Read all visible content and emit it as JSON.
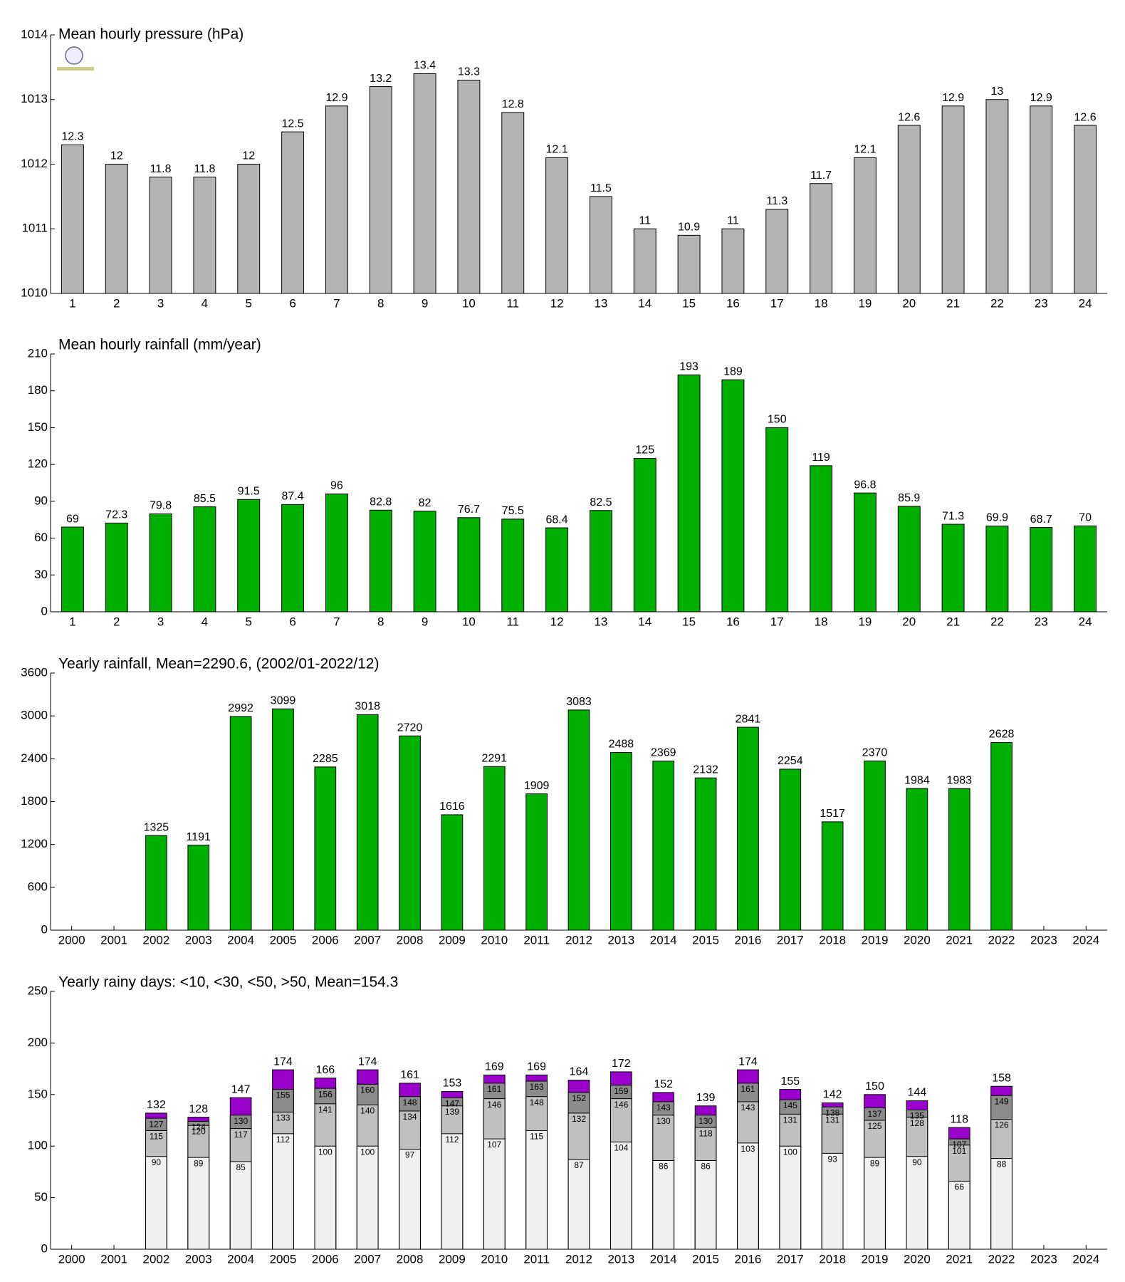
{
  "chart_data": [
    {
      "type": "bar",
      "title": "Mean hourly pressure (hPa)",
      "categories": [
        "1",
        "2",
        "3",
        "4",
        "5",
        "6",
        "7",
        "8",
        "9",
        "10",
        "11",
        "12",
        "13",
        "14",
        "15",
        "16",
        "17",
        "18",
        "19",
        "20",
        "21",
        "22",
        "23",
        "24"
      ],
      "values": [
        1012.3,
        1012,
        1011.8,
        1011.8,
        1012,
        1012.5,
        1012.9,
        1013.2,
        1013.4,
        1013.3,
        1012.8,
        1012.1,
        1011.5,
        1011,
        1010.9,
        1011,
        1011.3,
        1011.7,
        1012.1,
        1012.6,
        1012.9,
        1013,
        1012.9,
        1012.6
      ],
      "value_labels": [
        "12.3",
        "12",
        "11.8",
        "11.8",
        "12",
        "12.5",
        "12.9",
        "13.2",
        "13.4",
        "13.3",
        "12.8",
        "12.1",
        "11.5",
        "11",
        "10.9",
        "11",
        "11.3",
        "11.7",
        "12.1",
        "12.6",
        "12.9",
        "13",
        "12.9",
        "12.6"
      ],
      "color": "#b4b4b4",
      "ylim": [
        1010,
        1014
      ],
      "yticks": [
        1010,
        1011,
        1012,
        1013,
        1014
      ]
    },
    {
      "type": "bar",
      "title": "Mean hourly rainfall (mm/year)",
      "categories": [
        "1",
        "2",
        "3",
        "4",
        "5",
        "6",
        "7",
        "8",
        "9",
        "10",
        "11",
        "12",
        "13",
        "14",
        "15",
        "16",
        "17",
        "18",
        "19",
        "20",
        "21",
        "22",
        "23",
        "24"
      ],
      "values": [
        69,
        72.3,
        79.8,
        85.5,
        91.5,
        87.4,
        96,
        82.8,
        82,
        76.7,
        75.5,
        68.4,
        82.5,
        125,
        193,
        189,
        150,
        119,
        96.8,
        85.9,
        71.3,
        69.9,
        68.7,
        70
      ],
      "color": "#00b000",
      "ylim": [
        0,
        210
      ],
      "yticks": [
        0,
        30,
        60,
        90,
        120,
        150,
        180,
        210
      ]
    },
    {
      "type": "bar",
      "title": "Yearly rainfall, Mean=2290.6, (2002/01-2022/12)",
      "categories": [
        "2000",
        "2001",
        "2002",
        "2003",
        "2004",
        "2005",
        "2006",
        "2007",
        "2008",
        "2009",
        "2010",
        "2011",
        "2012",
        "2013",
        "2014",
        "2015",
        "2016",
        "2017",
        "2018",
        "2019",
        "2020",
        "2021",
        "2022",
        "2023",
        "2024"
      ],
      "values": [
        null,
        null,
        1325,
        1191,
        2992,
        3099,
        2285,
        3018,
        2720,
        1616,
        2291,
        1909,
        3083,
        2488,
        2369,
        2132,
        2841,
        2254,
        1517,
        2370,
        1984,
        1983,
        2628,
        null,
        null
      ],
      "color": "#00b000",
      "ylim": [
        0,
        3600
      ],
      "yticks": [
        0,
        600,
        1200,
        1800,
        2400,
        3000,
        3600
      ]
    },
    {
      "type": "overlap-bar",
      "title": "Yearly rainy days: <10, <30, <50, >50, Mean=154.3",
      "categories": [
        "2000",
        "2001",
        "2002",
        "2003",
        "2004",
        "2005",
        "2006",
        "2007",
        "2008",
        "2009",
        "2010",
        "2011",
        "2012",
        "2013",
        "2014",
        "2015",
        "2016",
        "2017",
        "2018",
        "2019",
        "2020",
        "2021",
        "2022",
        "2023",
        "2024"
      ],
      "series": [
        {
          "color": "#f0f0f0",
          "values": [
            null,
            null,
            90,
            89,
            85,
            112,
            100,
            100,
            97,
            112,
            107,
            115,
            87,
            104,
            86,
            86,
            103,
            100,
            93,
            89,
            90,
            66,
            88,
            null,
            null
          ]
        },
        {
          "color": "#c0c0c0",
          "values": [
            null,
            null,
            115,
            120,
            117,
            133,
            141,
            140,
            134,
            139,
            146,
            148,
            132,
            146,
            130,
            118,
            143,
            131,
            131,
            125,
            128,
            101,
            126,
            null,
            null
          ]
        },
        {
          "color": "#8c8c8c",
          "values": [
            null,
            null,
            127,
            124,
            130,
            155,
            156,
            160,
            148,
            147,
            161,
            163,
            152,
            159,
            143,
            130,
            161,
            145,
            138,
            137,
            135,
            107,
            149,
            null,
            null
          ]
        },
        {
          "color": "#9900cc",
          "values": [
            null,
            null,
            132,
            128,
            147,
            174,
            166,
            174,
            161,
            153,
            169,
            169,
            164,
            172,
            152,
            139,
            174,
            155,
            142,
            150,
            144,
            118,
            158,
            null,
            null
          ]
        }
      ],
      "ylim": [
        0,
        250
      ],
      "yticks": [
        0,
        50,
        100,
        150,
        200,
        250
      ]
    }
  ]
}
